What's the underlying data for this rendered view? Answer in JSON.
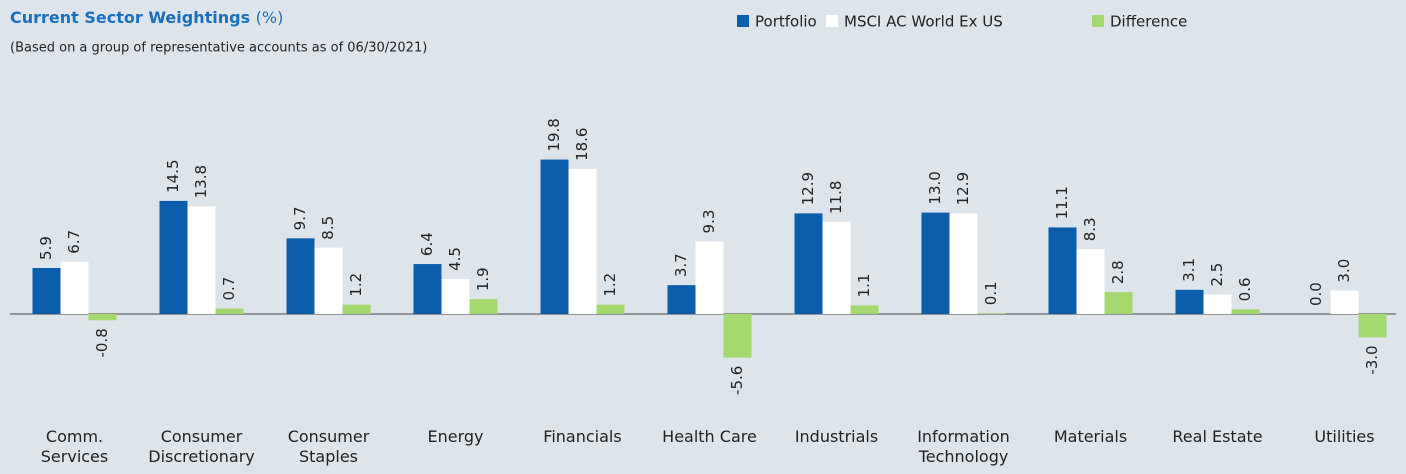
{
  "chart_data": {
    "type": "bar",
    "title": "Current Sector Weightings",
    "title_suffix": "(%)",
    "subtitle": "(Based on a group of representative accounts as of 06/30/2021)",
    "categories": [
      "Comm.\nServices",
      "Consumer\nDiscretionary",
      "Consumer\nStaples",
      "Energy",
      "Financials",
      "Health Care",
      "Industrials",
      "Information\nTechnology",
      "Materials",
      "Real Estate",
      "Utilities"
    ],
    "series": [
      {
        "name": "Portfolio",
        "color": "#0b5eac",
        "values": [
          5.9,
          14.5,
          9.7,
          6.4,
          19.8,
          3.7,
          12.9,
          13.0,
          11.1,
          3.1,
          0.0
        ],
        "value_labels": [
          "5.9",
          "14.5",
          "9.7",
          "6.4",
          "19.8",
          "3.7",
          "12.9",
          "13.0",
          "11.1",
          "3.1",
          "0.0"
        ]
      },
      {
        "name": "MSCI AC World Ex US",
        "color": "#ffffff",
        "values": [
          6.7,
          13.8,
          8.5,
          4.5,
          18.6,
          9.3,
          11.8,
          12.9,
          8.3,
          2.5,
          3.0
        ],
        "value_labels": [
          "6.7",
          "13.8",
          "8.5",
          "4.5",
          "18.6",
          "9.3",
          "11.8",
          "12.9",
          "8.3",
          "2.5",
          "3.0"
        ]
      },
      {
        "name": "Difference",
        "color": "#a3d86e",
        "values": [
          -0.8,
          0.7,
          1.2,
          1.9,
          1.2,
          -5.6,
          1.1,
          0.1,
          2.8,
          0.6,
          -3.0
        ],
        "value_labels": [
          "-0.8",
          "0.7",
          "1.2",
          "1.9",
          "1.2",
          "-5.6",
          "1.1",
          "0.1",
          "2.8",
          "0.6",
          "-3.0"
        ]
      }
    ],
    "ylim": [
      -8,
      22
    ],
    "legend": "top-right"
  }
}
